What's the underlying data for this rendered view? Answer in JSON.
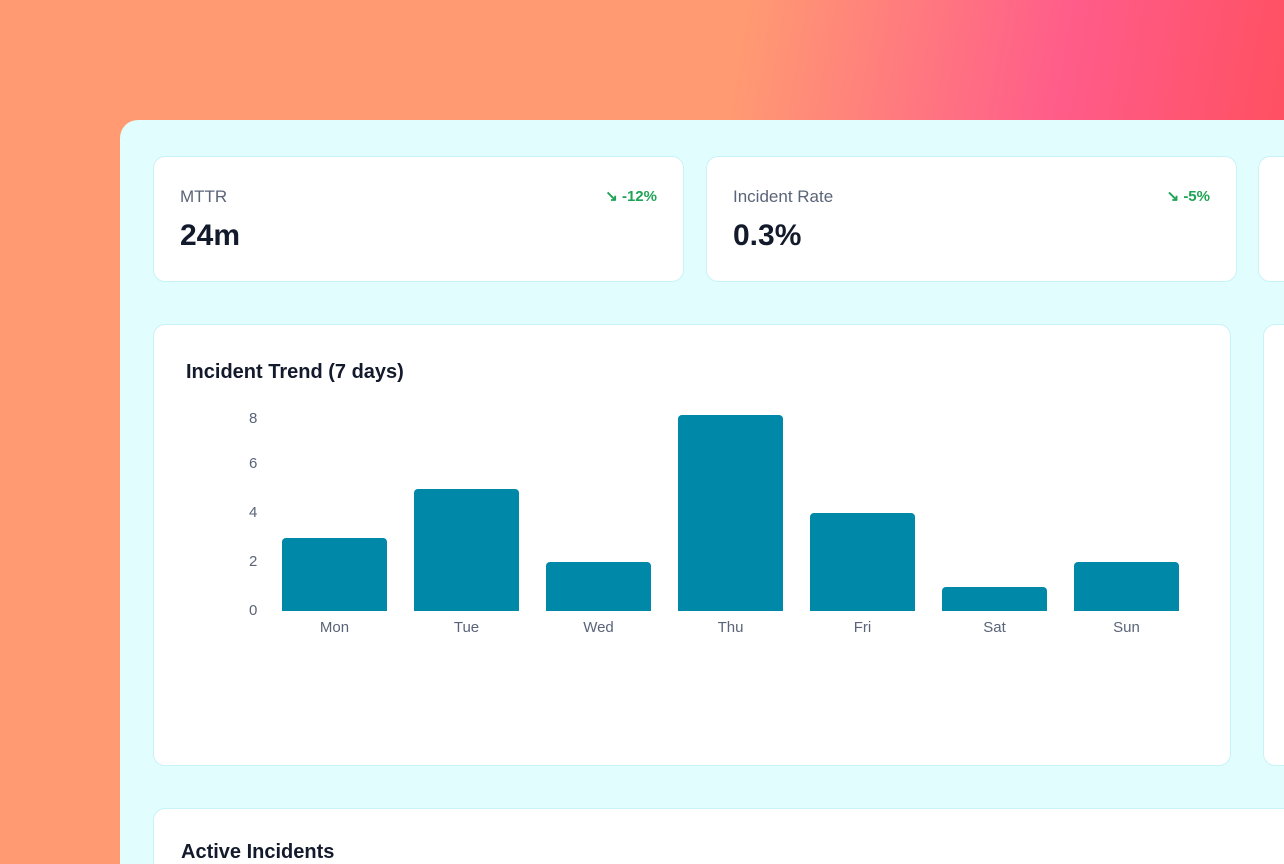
{
  "kpis": [
    {
      "label": "MTTR",
      "value": "24m",
      "delta": "-12%",
      "icon": "trend-down-icon"
    },
    {
      "label": "Incident Rate",
      "value": "0.3%",
      "delta": "-5%",
      "icon": "trend-down-icon"
    }
  ],
  "trend": {
    "title": "Incident Trend (7 days)"
  },
  "incidents": {
    "title": "Active Incidents"
  },
  "colors": {
    "bar": "#0088a8",
    "positive": "#1fa356"
  },
  "chart_data": {
    "type": "bar",
    "title": "Incident Trend (7 days)",
    "categories": [
      "Mon",
      "Tue",
      "Wed",
      "Thu",
      "Fri",
      "Sat",
      "Sun"
    ],
    "values": [
      3,
      5,
      2,
      8,
      4,
      1,
      2
    ],
    "yticks": [
      "0",
      "2",
      "4",
      "6",
      "8"
    ],
    "ylim": [
      0,
      8
    ],
    "grid": false
  }
}
